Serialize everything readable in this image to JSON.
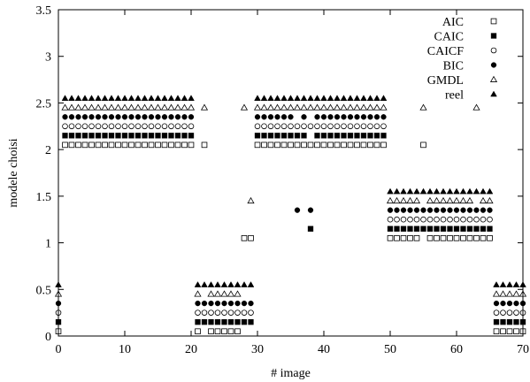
{
  "chart_data": {
    "type": "scatter",
    "xlabel": "# image",
    "ylabel": "modele choisi",
    "xlim": [
      0,
      70
    ],
    "ylim": [
      0,
      3.5
    ],
    "xticks": [
      "0",
      "10",
      "20",
      "30",
      "40",
      "50",
      "60",
      "70"
    ],
    "yticks": [
      "0",
      "0.5",
      "1",
      "1.5",
      "2",
      "2.5",
      "3",
      "3.5"
    ],
    "legend_position": "top-right",
    "series": [
      {
        "name": "AIC",
        "marker": "open-square",
        "offset": 0.05,
        "segments": [
          {
            "x": [
              0
            ],
            "y": 0
          },
          {
            "x": [
              1,
              2,
              3,
              4,
              5,
              6,
              7,
              8,
              9,
              10,
              11,
              12,
              13,
              14,
              15,
              16,
              17,
              18,
              19,
              20
            ],
            "y": 2
          },
          {
            "x": [
              21
            ],
            "y": 0
          },
          {
            "x": [
              22
            ],
            "y": 2
          },
          {
            "x": [
              23,
              24,
              25,
              26,
              27
            ],
            "y": 0
          },
          {
            "x": [
              28,
              29
            ],
            "y": 1
          },
          {
            "x": [
              30,
              31,
              32,
              33,
              34,
              35,
              36,
              37,
              38,
              39,
              40,
              41,
              42,
              43,
              44,
              45,
              46,
              47,
              48,
              49
            ],
            "y": 2
          },
          {
            "x": [
              50,
              51,
              52,
              53,
              54
            ],
            "y": 1
          },
          {
            "x": [
              55
            ],
            "y": 2
          },
          {
            "x": [
              56,
              57,
              58,
              59,
              60,
              61,
              62,
              63,
              64,
              65
            ],
            "y": 1
          },
          {
            "x": [
              66,
              67,
              68,
              69,
              70
            ],
            "y": 0
          }
        ]
      },
      {
        "name": "CAIC",
        "marker": "filled-square",
        "offset": 0.15,
        "segments": [
          {
            "x": [
              0
            ],
            "y": 0
          },
          {
            "x": [
              1,
              2,
              3,
              4,
              5,
              6,
              7,
              8,
              9,
              10,
              11,
              12,
              13,
              14,
              15,
              16,
              17,
              18,
              19,
              20
            ],
            "y": 2
          },
          {
            "x": [
              21,
              22,
              23,
              24,
              25,
              26,
              27,
              28,
              29
            ],
            "y": 0
          },
          {
            "x": [
              30,
              31,
              32,
              33,
              34,
              35,
              36,
              37
            ],
            "y": 2
          },
          {
            "x": [
              38
            ],
            "y": 1
          },
          {
            "x": [
              39,
              40,
              41,
              42,
              43,
              44,
              45,
              46,
              47,
              48,
              49
            ],
            "y": 2
          },
          {
            "x": [
              50,
              51,
              52,
              53,
              54,
              55,
              56,
              57,
              58,
              59,
              60,
              61,
              62,
              63,
              64,
              65
            ],
            "y": 1
          },
          {
            "x": [
              66,
              67,
              68,
              69,
              70
            ],
            "y": 0
          }
        ]
      },
      {
        "name": "CAICF",
        "marker": "open-circle",
        "offset": 0.25,
        "segments": [
          {
            "x": [
              0
            ],
            "y": 0
          },
          {
            "x": [
              1,
              2,
              3,
              4,
              5,
              6,
              7,
              8,
              9,
              10,
              11,
              12,
              13,
              14,
              15,
              16,
              17,
              18,
              19,
              20
            ],
            "y": 2
          },
          {
            "x": [
              21,
              22,
              23,
              24,
              25,
              26,
              27,
              28,
              29
            ],
            "y": 0
          },
          {
            "x": [
              30,
              31,
              32,
              33,
              34,
              35,
              36,
              37,
              38,
              39,
              40,
              41,
              42,
              43,
              44,
              45,
              46,
              47,
              48,
              49
            ],
            "y": 2
          },
          {
            "x": [
              50,
              51,
              52,
              53,
              54,
              55,
              56,
              57,
              58,
              59,
              60,
              61,
              62,
              63,
              64,
              65
            ],
            "y": 1
          },
          {
            "x": [
              66,
              67,
              68,
              69,
              70
            ],
            "y": 0
          }
        ]
      },
      {
        "name": "BIC",
        "marker": "filled-circle",
        "offset": 0.35,
        "segments": [
          {
            "x": [
              0
            ],
            "y": 0
          },
          {
            "x": [
              1,
              2,
              3,
              4,
              5,
              6,
              7,
              8,
              9,
              10,
              11,
              12,
              13,
              14,
              15,
              16,
              17,
              18,
              19,
              20
            ],
            "y": 2
          },
          {
            "x": [
              21,
              22,
              23,
              24,
              25,
              26,
              27,
              28,
              29
            ],
            "y": 0
          },
          {
            "x": [
              30,
              31,
              32,
              33,
              34,
              35
            ],
            "y": 2
          },
          {
            "x": [
              36
            ],
            "y": 1
          },
          {
            "x": [
              37
            ],
            "y": 2
          },
          {
            "x": [
              38
            ],
            "y": 1
          },
          {
            "x": [
              39,
              40,
              41,
              42,
              43,
              44,
              45,
              46,
              47,
              48,
              49
            ],
            "y": 2
          },
          {
            "x": [
              50,
              51,
              52,
              53,
              54,
              55,
              56,
              57,
              58,
              59,
              60,
              61,
              62,
              63,
              64,
              65
            ],
            "y": 1
          },
          {
            "x": [
              66,
              67,
              68,
              69,
              70
            ],
            "y": 0
          }
        ]
      },
      {
        "name": "GMDL",
        "marker": "open-triangle",
        "offset": 0.45,
        "segments": [
          {
            "x": [
              0
            ],
            "y": 0
          },
          {
            "x": [
              1,
              2,
              3,
              4,
              5,
              6,
              7,
              8,
              9,
              10,
              11,
              12,
              13,
              14,
              15,
              16,
              17,
              18,
              19,
              20
            ],
            "y": 2
          },
          {
            "x": [
              21
            ],
            "y": 0
          },
          {
            "x": [
              22
            ],
            "y": 2
          },
          {
            "x": [
              23,
              24,
              25,
              26,
              27
            ],
            "y": 0
          },
          {
            "x": [
              28
            ],
            "y": 2
          },
          {
            "x": [
              29
            ],
            "y": 1
          },
          {
            "x": [
              30,
              31,
              32,
              33,
              34,
              35,
              36,
              37,
              38,
              39,
              40,
              41,
              42,
              43,
              44,
              45,
              46,
              47,
              48,
              49
            ],
            "y": 2
          },
          {
            "x": [
              50,
              51,
              52,
              53,
              54
            ],
            "y": 1
          },
          {
            "x": [
              55
            ],
            "y": 2
          },
          {
            "x": [
              56,
              57,
              58,
              59,
              60,
              61,
              62
            ],
            "y": 1
          },
          {
            "x": [
              63
            ],
            "y": 2
          },
          {
            "x": [
              64,
              65
            ],
            "y": 1
          },
          {
            "x": [
              66,
              67,
              68,
              69,
              70
            ],
            "y": 0
          }
        ]
      },
      {
        "name": "reel",
        "marker": "filled-triangle",
        "offset": 0.55,
        "segments": [
          {
            "x": [
              0
            ],
            "y": 0
          },
          {
            "x": [
              1,
              2,
              3,
              4,
              5,
              6,
              7,
              8,
              9,
              10,
              11,
              12,
              13,
              14,
              15,
              16,
              17,
              18,
              19,
              20
            ],
            "y": 2
          },
          {
            "x": [
              21,
              22,
              23,
              24,
              25,
              26,
              27,
              28,
              29
            ],
            "y": 0
          },
          {
            "x": [
              30,
              31,
              32,
              33,
              34,
              35,
              36,
              37,
              38,
              39,
              40,
              41,
              42,
              43,
              44,
              45,
              46,
              47,
              48,
              49
            ],
            "y": 2
          },
          {
            "x": [
              50,
              51,
              52,
              53,
              54,
              55,
              56,
              57,
              58,
              59,
              60,
              61,
              62,
              63,
              64,
              65
            ],
            "y": 1
          },
          {
            "x": [
              66,
              67,
              68,
              69,
              70
            ],
            "y": 0
          }
        ]
      }
    ]
  }
}
